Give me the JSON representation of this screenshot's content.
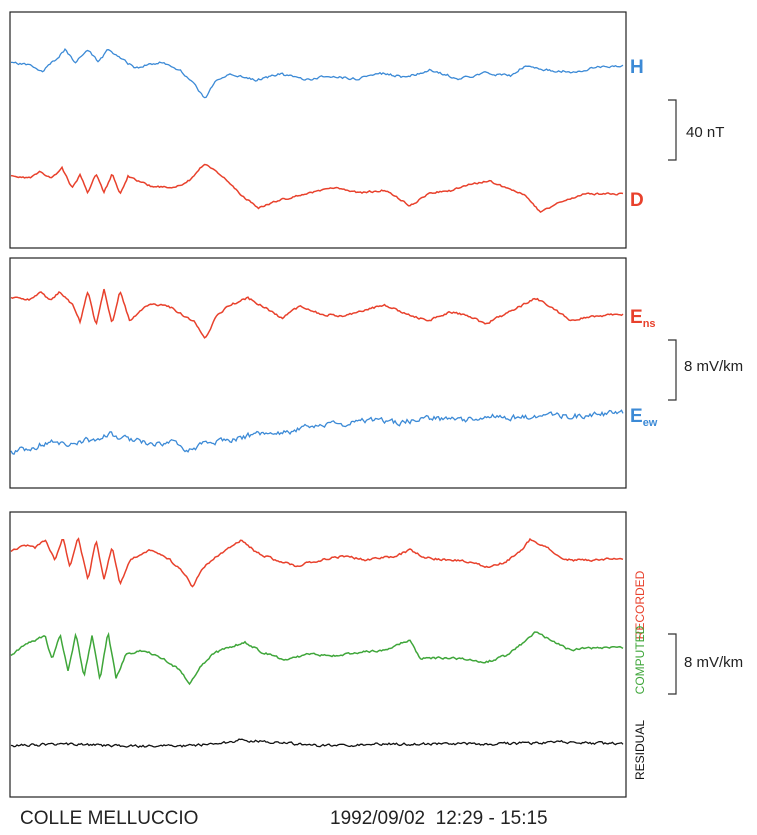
{
  "chart_data": [
    {
      "type": "line",
      "panel": "magnetic",
      "series": [
        {
          "name": "H",
          "color": "#3c8ad6",
          "label_main": "H",
          "label_sub": ""
        },
        {
          "name": "D",
          "color": "#e8412c",
          "label_main": "D",
          "label_sub": ""
        }
      ],
      "scale_bar": {
        "label": "40 nT"
      },
      "grid": false
    },
    {
      "type": "line",
      "panel": "electric",
      "series": [
        {
          "name": "Ens",
          "color": "#e8412c",
          "label_main": "E",
          "label_sub": "ns"
        },
        {
          "name": "Eew",
          "color": "#3c8ad6",
          "label_main": "E",
          "label_sub": "ew"
        }
      ],
      "scale_bar": {
        "label": "8 mV/km"
      },
      "grid": false
    },
    {
      "type": "line",
      "panel": "comparison",
      "series": [
        {
          "name": "RECORDED",
          "color": "#e8412c"
        },
        {
          "name": "COMPUTED",
          "color": "#3fa63a"
        },
        {
          "name": "RESIDUAL",
          "color": "#111111"
        }
      ],
      "scale_bar": {
        "label": "8 mV/km"
      },
      "grid": false
    }
  ],
  "footer": {
    "station": "COLLE MELLUCCIO",
    "date_time": "1992/09/02  12:29 - 15:15"
  }
}
